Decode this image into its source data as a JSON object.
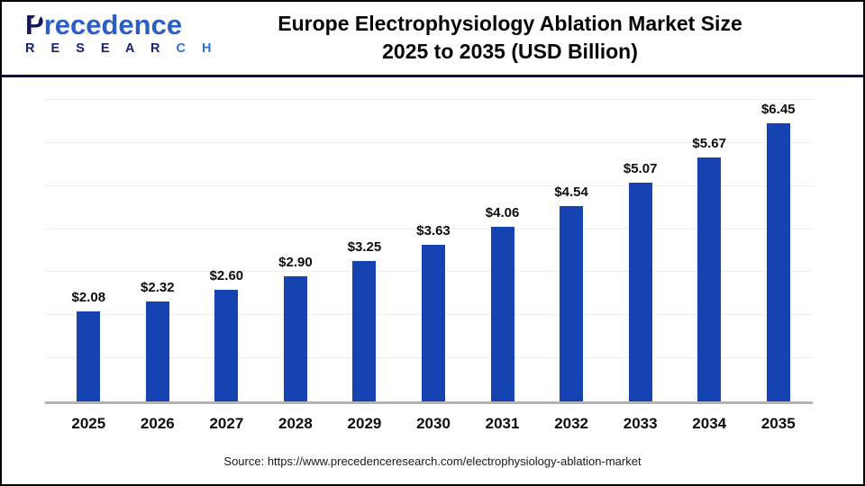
{
  "header": {
    "logo": {
      "first_letter": "P",
      "brand_rest": "recedence",
      "brand_secondary_dark": "R E S E A R",
      "brand_secondary_light": "C H"
    },
    "title_line1": "Europe Electrophysiology Ablation Market Size",
    "title_line2": "2025 to 2035 (USD Billion)"
  },
  "chart_data": {
    "type": "bar",
    "title": "Europe Electrophysiology Ablation Market Size 2025 to 2035 (USD Billion)",
    "categories": [
      "2025",
      "2026",
      "2027",
      "2028",
      "2029",
      "2030",
      "2031",
      "2032",
      "2033",
      "2034",
      "2035"
    ],
    "values": [
      2.08,
      2.32,
      2.6,
      2.9,
      3.25,
      3.63,
      4.06,
      4.54,
      5.07,
      5.67,
      6.45
    ],
    "value_labels": [
      "$2.08",
      "$2.32",
      "$2.60",
      "$2.90",
      "$3.25",
      "$3.63",
      "$4.06",
      "$4.54",
      "$5.07",
      "$5.67",
      "$6.45"
    ],
    "xlabel": "",
    "ylabel": "",
    "ylim": [
      0,
      7
    ],
    "grid": "horizontal gridlines every 1.0, no y-axis tick labels",
    "legend": "none",
    "bar_color": "#1643B2"
  },
  "colors": {
    "bar": "#1643B2",
    "separator": "#0F1048",
    "logo_dark": "#12155F",
    "logo_light": "#2B5FC7",
    "axis_line": "#B3B3B3",
    "gridline": "#ECECEC"
  },
  "footer": {
    "source": "Source: https://www.precedenceresearch.com/electrophysiology-ablation-market"
  }
}
